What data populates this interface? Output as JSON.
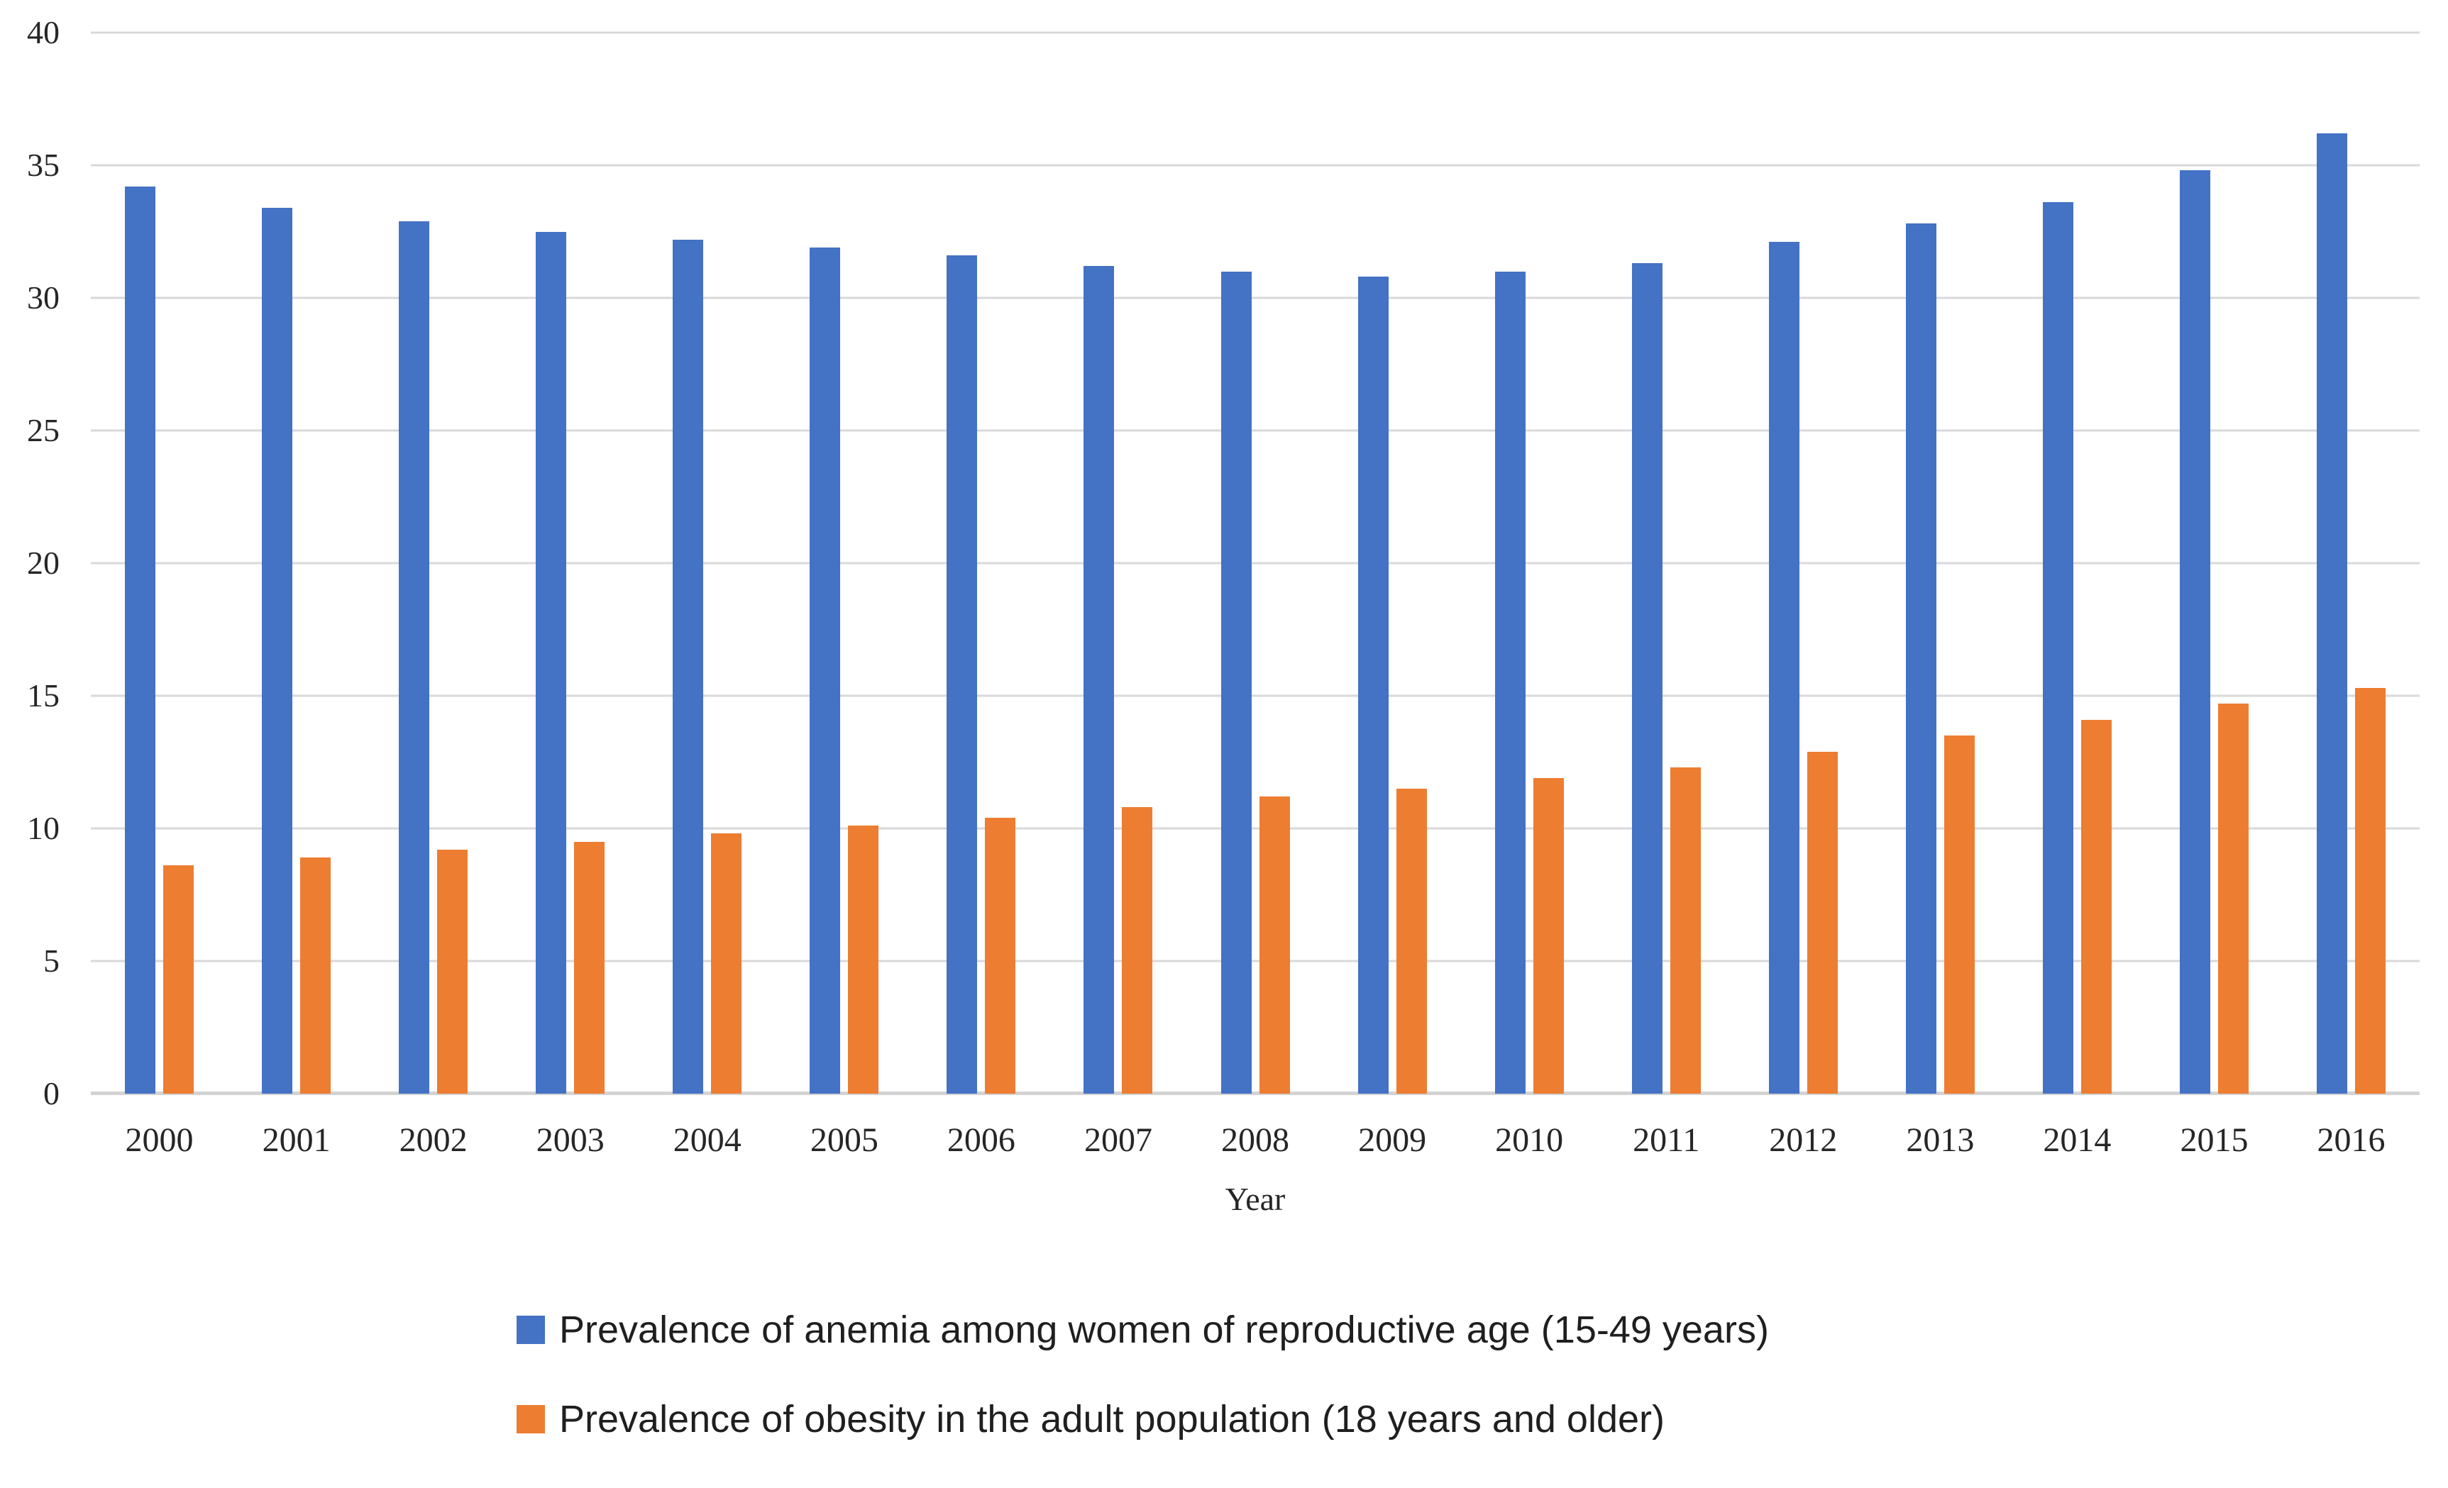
{
  "chart_data": {
    "type": "bar",
    "title": "",
    "categories": [
      "2000",
      "2001",
      "2002",
      "2003",
      "2004",
      "2005",
      "2006",
      "2007",
      "2008",
      "2009",
      "2010",
      "2011",
      "2012",
      "2013",
      "2014",
      "2015",
      "2016"
    ],
    "series": [
      {
        "key": "anemia",
        "name": "Prevalence of anemia among women of reproductive age (15-49 years)",
        "color": "#4472C4",
        "values": [
          34.2,
          33.4,
          32.9,
          32.5,
          32.2,
          31.9,
          31.6,
          31.2,
          31.0,
          30.8,
          31.0,
          31.3,
          32.1,
          32.8,
          33.6,
          34.8,
          36.2
        ]
      },
      {
        "key": "obesity",
        "name": "Prevalence of obesity in the adult population (18 years and older)",
        "color": "#ED7D31",
        "values": [
          8.6,
          8.9,
          9.2,
          9.5,
          9.8,
          10.1,
          10.4,
          10.8,
          11.2,
          11.5,
          11.9,
          12.3,
          12.9,
          13.5,
          14.1,
          14.7,
          15.3
        ]
      }
    ],
    "xlabel": "Year",
    "ylabel": "",
    "ylim": [
      0,
      40
    ],
    "yticks": [
      0,
      5,
      10,
      15,
      20,
      25,
      30,
      35,
      40
    ],
    "grid": true,
    "legend_position": "bottom",
    "gridline_color": "#D9D9D9",
    "axis_line_color": "#D3D3D3",
    "background_color": "#FFFFFF"
  }
}
